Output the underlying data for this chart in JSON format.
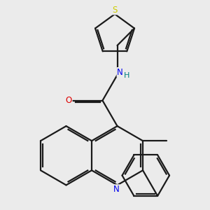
{
  "bg": "#ebebeb",
  "bond_color": "#1a1a1a",
  "lw": 1.6,
  "atom_colors": {
    "N": "#0000ee",
    "O": "#dd0000",
    "S": "#cccc00",
    "H": "#008080"
  },
  "figsize": [
    3.0,
    3.0
  ],
  "dpi": 100
}
